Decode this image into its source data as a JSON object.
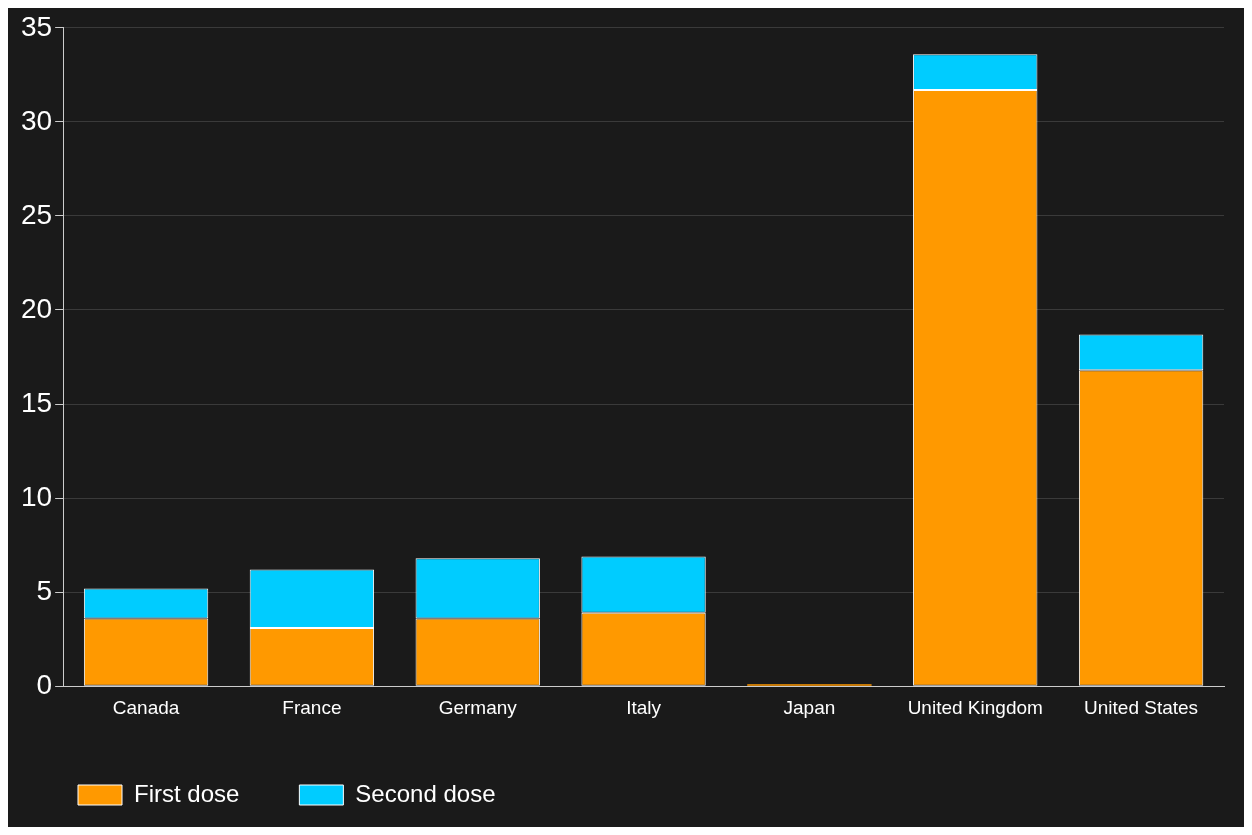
{
  "chart_data": {
    "type": "bar",
    "stacked": true,
    "categories": [
      "Canada",
      "France",
      "Germany",
      "Italy",
      "Japan",
      "United Kingdom",
      "United States"
    ],
    "series": [
      {
        "name": "First dose",
        "color": "#ff9900",
        "values": [
          3.6,
          3.1,
          3.6,
          3.9,
          0.1,
          31.7,
          16.8
        ]
      },
      {
        "name": "Second dose",
        "color": "#00ccff",
        "values": [
          1.6,
          3.1,
          3.2,
          3.0,
          null,
          1.9,
          1.9
        ]
      }
    ],
    "ylim": [
      0,
      35
    ],
    "yticks": [
      0,
      5,
      10,
      15,
      20,
      25,
      30,
      35
    ],
    "grid": "y",
    "legend": "bottom left"
  }
}
